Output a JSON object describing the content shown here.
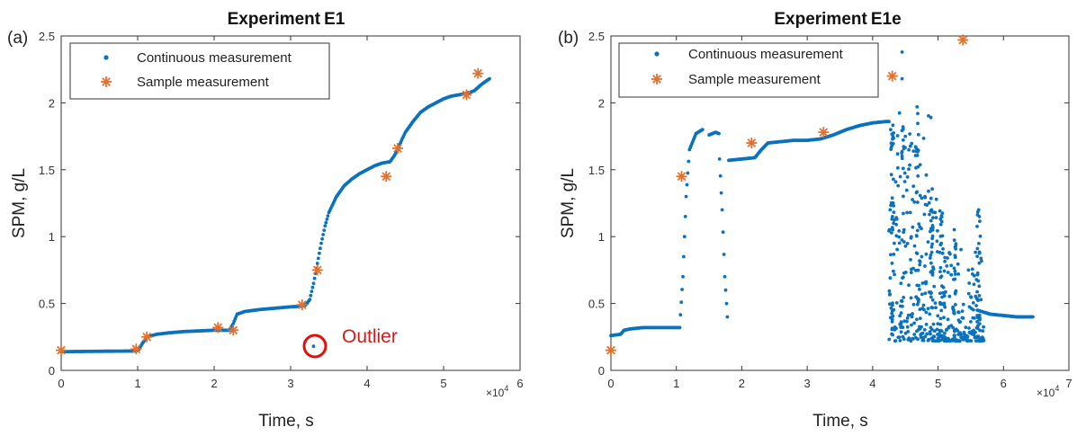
{
  "colors": {
    "continuous": "#0b72bd",
    "sample": "#e4702e",
    "outlier": "#e01010",
    "axis": "#333333"
  },
  "chart_data": [
    {
      "type": "scatter",
      "panel_label": "(a)",
      "title": "Experiment E1",
      "title_main": "Experiment",
      "title_sub": "E1",
      "xlabel": "Time, s",
      "ylabel": "SPM, g/L",
      "x_exponent": "×10^4",
      "x_exponent_base": "×10",
      "x_exponent_power": "4",
      "xlim": [
        0,
        60000
      ],
      "ylim": [
        0,
        2.5
      ],
      "xticks": [
        0,
        10000,
        20000,
        30000,
        40000,
        50000,
        60000
      ],
      "xtick_labels": [
        "0",
        "1",
        "2",
        "3",
        "4",
        "5",
        "6"
      ],
      "yticks": [
        0,
        0.5,
        1,
        1.5,
        2,
        2.5
      ],
      "ytick_labels": [
        "0",
        "0.5",
        "1",
        "1.5",
        "2",
        "2.5"
      ],
      "grid": false,
      "legend": {
        "position": "top-left",
        "entries": [
          "Continuous measurement",
          "Sample measurement"
        ]
      },
      "series": [
        {
          "name": "Continuous measurement",
          "marker": "dot",
          "curve": [
            [
              0,
              0.14
            ],
            [
              9800,
              0.145
            ],
            [
              10200,
              0.16
            ],
            [
              10600,
              0.2
            ],
            [
              11200,
              0.25
            ],
            [
              12500,
              0.27
            ],
            [
              14000,
              0.28
            ],
            [
              16000,
              0.29
            ],
            [
              18000,
              0.295
            ],
            [
              20000,
              0.3
            ],
            [
              22000,
              0.3
            ],
            [
              22500,
              0.35
            ],
            [
              23000,
              0.42
            ],
            [
              24000,
              0.44
            ],
            [
              26000,
              0.455
            ],
            [
              28000,
              0.465
            ],
            [
              30000,
              0.475
            ],
            [
              31500,
              0.48
            ],
            [
              32000,
              0.49
            ],
            [
              32500,
              0.53
            ],
            [
              33000,
              0.65
            ],
            [
              33500,
              0.8
            ],
            [
              34000,
              0.95
            ],
            [
              34500,
              1.08
            ],
            [
              35000,
              1.18
            ],
            [
              36000,
              1.3
            ],
            [
              37000,
              1.38
            ],
            [
              38000,
              1.43
            ],
            [
              39000,
              1.47
            ],
            [
              40000,
              1.5
            ],
            [
              41000,
              1.53
            ],
            [
              42000,
              1.55
            ],
            [
              43000,
              1.56
            ],
            [
              43500,
              1.6
            ],
            [
              44000,
              1.65
            ],
            [
              44500,
              1.72
            ],
            [
              45000,
              1.78
            ],
            [
              46000,
              1.86
            ],
            [
              47000,
              1.93
            ],
            [
              48000,
              1.97
            ],
            [
              49000,
              2.0
            ],
            [
              50000,
              2.03
            ],
            [
              51000,
              2.05
            ],
            [
              52000,
              2.06
            ],
            [
              53000,
              2.07
            ],
            [
              54000,
              2.09
            ],
            [
              55000,
              2.14
            ],
            [
              56000,
              2.18
            ]
          ],
          "extra_points": [
            [
              33000,
              0.18
            ]
          ]
        },
        {
          "name": "Sample measurement",
          "marker": "asterisk",
          "points": [
            [
              0,
              0.15
            ],
            [
              9800,
              0.16
            ],
            [
              11200,
              0.25
            ],
            [
              20500,
              0.32
            ],
            [
              22500,
              0.3
            ],
            [
              31500,
              0.49
            ],
            [
              33500,
              0.75
            ],
            [
              42500,
              1.45
            ],
            [
              44000,
              1.66
            ],
            [
              53000,
              2.06
            ],
            [
              54500,
              2.22
            ]
          ]
        }
      ],
      "annotations": [
        {
          "text": "Outlier",
          "x": 33000,
          "y": 0.18
        }
      ]
    },
    {
      "type": "scatter",
      "panel_label": "(b)",
      "title": "Experiment E1e",
      "title_main": "Experiment",
      "title_sub": "E1e",
      "xlabel": "Time, s",
      "ylabel": "SPM, g/L",
      "x_exponent": "×10^4",
      "x_exponent_base": "×10",
      "x_exponent_power": "4",
      "xlim": [
        0,
        70000
      ],
      "ylim": [
        0,
        2.5
      ],
      "xticks": [
        0,
        10000,
        20000,
        30000,
        40000,
        50000,
        60000,
        70000
      ],
      "xtick_labels": [
        "0",
        "1",
        "2",
        "3",
        "4",
        "5",
        "6",
        "7"
      ],
      "yticks": [
        0,
        0.5,
        1,
        1.5,
        2,
        2.5
      ],
      "ytick_labels": [
        "0",
        "0.5",
        "1",
        "1.5",
        "2",
        "2.5"
      ],
      "grid": false,
      "legend": {
        "position": "top-left",
        "entries": [
          "Continuous measurement",
          "Sample measurement"
        ]
      },
      "series": [
        {
          "name": "Continuous measurement",
          "marker": "dot",
          "curve": [
            [
              0,
              0.26
            ],
            [
              1500,
              0.27
            ],
            [
              2000,
              0.3
            ],
            [
              3000,
              0.31
            ],
            [
              5000,
              0.32
            ],
            [
              8000,
              0.32
            ],
            [
              10500,
              0.32
            ]
          ],
          "segments": [
            [
              [
                10500,
                0.32
              ],
              [
                11000,
                0.7
              ],
              [
                11500,
                1.3
              ],
              [
                12000,
                1.65
              ],
              [
                13000,
                1.77
              ],
              [
                14000,
                1.8
              ]
            ],
            [
              [
                15000,
                1.76
              ],
              [
                16000,
                1.78
              ],
              [
                16500,
                1.77
              ]
            ],
            [
              [
                16600,
                1.58
              ],
              [
                17000,
                1.2
              ],
              [
                17400,
                0.7
              ],
              [
                17800,
                0.4
              ]
            ],
            [
              [
                18000,
                1.57
              ],
              [
                20000,
                1.58
              ],
              [
                22000,
                1.59
              ],
              [
                23000,
                1.65
              ],
              [
                24000,
                1.7
              ],
              [
                26000,
                1.71
              ],
              [
                28000,
                1.72
              ],
              [
                30000,
                1.72
              ],
              [
                32000,
                1.73
              ],
              [
                34000,
                1.76
              ],
              [
                36000,
                1.8
              ],
              [
                38000,
                1.83
              ],
              [
                40000,
                1.85
              ],
              [
                42000,
                1.86
              ],
              [
                42500,
                1.86
              ]
            ],
            [
              [
                56000,
                0.45
              ],
              [
                58000,
                0.42
              ],
              [
                60000,
                0.41
              ],
              [
                62000,
                0.4
              ],
              [
                64500,
                0.4
              ]
            ]
          ],
          "scatter_region": {
            "x": [
              42500,
              57000
            ],
            "y": [
              0.22,
              1.95
            ]
          },
          "extra_points": [
            [
              44500,
              2.38
            ],
            [
              44500,
              2.18
            ],
            [
              46800,
              1.97
            ],
            [
              46900,
              1.92
            ],
            [
              45000,
              1.75
            ],
            [
              48000,
              1.3
            ],
            [
              49000,
              1.2
            ],
            [
              50500,
              0.95
            ],
            [
              56200,
              1.2
            ],
            [
              56300,
              1.15
            ],
            [
              43000,
              1.25
            ],
            [
              43200,
              1.1
            ],
            [
              43300,
              0.95
            ],
            [
              47500,
              0.85
            ],
            [
              55000,
              0.55
            ]
          ]
        },
        {
          "name": "Sample measurement",
          "marker": "asterisk",
          "points": [
            [
              0,
              0.15
            ],
            [
              10800,
              1.45
            ],
            [
              21500,
              1.7
            ],
            [
              32500,
              1.78
            ],
            [
              43000,
              2.2
            ],
            [
              53800,
              2.47
            ]
          ]
        }
      ],
      "annotations": []
    }
  ]
}
